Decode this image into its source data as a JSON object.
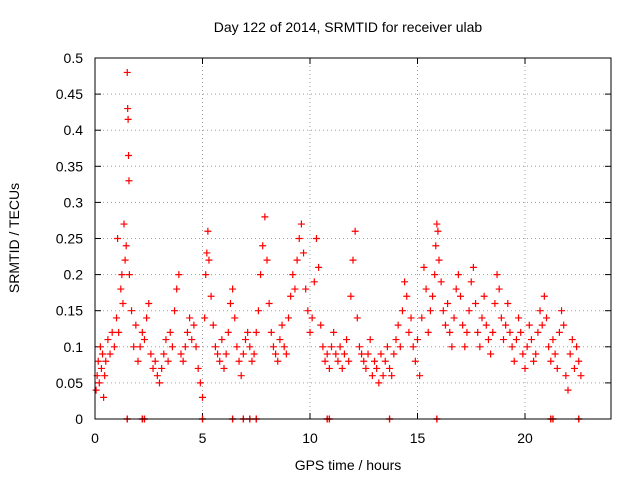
{
  "chart_data": {
    "type": "scatter",
    "title": "Day 122 of 2014, SRMTID for receiver ulab",
    "xlabel": "GPS time / hours",
    "ylabel": "SRMTID / TECUs",
    "xlim": [
      0,
      24
    ],
    "ylim": [
      0,
      0.5
    ],
    "xticks": [
      0,
      5,
      10,
      15,
      20
    ],
    "xtick_labels": [
      "0",
      "5",
      "10",
      "15",
      "20"
    ],
    "yticks": [
      0,
      0.05,
      0.1,
      0.15,
      0.2,
      0.25,
      0.3,
      0.35,
      0.4,
      0.45,
      0.5
    ],
    "ytick_labels": [
      "0",
      "0.05",
      "0.1",
      "0.15",
      "0.2",
      "0.25",
      "0.3",
      "0.35",
      "0.4",
      "0.45",
      "0.5"
    ],
    "grid": true,
    "marker": "+",
    "series_color": "#ff0000",
    "series": [
      {
        "name": "SRMTID",
        "points": [
          [
            0.05,
            0.04
          ],
          [
            0.1,
            0.06
          ],
          [
            0.15,
            0.08
          ],
          [
            0.2,
            0.05
          ],
          [
            0.25,
            0.1
          ],
          [
            0.3,
            0.07
          ],
          [
            0.35,
            0.09
          ],
          [
            0.4,
            0.03
          ],
          [
            0.45,
            0.06
          ],
          [
            0.5,
            0.08
          ],
          [
            0.6,
            0.11
          ],
          [
            0.7,
            0.09
          ],
          [
            0.8,
            0.12
          ],
          [
            0.9,
            0.1
          ],
          [
            1.0,
            0.14
          ],
          [
            1.05,
            0.25
          ],
          [
            1.1,
            0.12
          ],
          [
            1.2,
            0.18
          ],
          [
            1.25,
            0.2
          ],
          [
            1.3,
            0.16
          ],
          [
            1.35,
            0.27
          ],
          [
            1.4,
            0.22
          ],
          [
            1.45,
            0.24
          ],
          [
            1.5,
            0.48
          ],
          [
            1.52,
            0.43
          ],
          [
            1.54,
            0.415
          ],
          [
            1.56,
            0.365
          ],
          [
            1.58,
            0.33
          ],
          [
            1.6,
            0.2
          ],
          [
            1.7,
            0.15
          ],
          [
            1.8,
            0.1
          ],
          [
            1.9,
            0.13
          ],
          [
            2.0,
            0.08
          ],
          [
            2.1,
            0.1
          ],
          [
            2.2,
            0.12
          ],
          [
            2.3,
            0.11
          ],
          [
            2.4,
            0.14
          ],
          [
            2.5,
            0.16
          ],
          [
            2.6,
            0.09
          ],
          [
            2.7,
            0.07
          ],
          [
            2.8,
            0.08
          ],
          [
            2.9,
            0.06
          ],
          [
            3.0,
            0.05
          ],
          [
            3.1,
            0.07
          ],
          [
            3.2,
            0.09
          ],
          [
            3.3,
            0.11
          ],
          [
            3.4,
            0.08
          ],
          [
            3.5,
            0.12
          ],
          [
            3.6,
            0.1
          ],
          [
            3.7,
            0.15
          ],
          [
            3.8,
            0.18
          ],
          [
            3.9,
            0.2
          ],
          [
            4.0,
            0.09
          ],
          [
            4.1,
            0.08
          ],
          [
            4.2,
            0.1
          ],
          [
            4.3,
            0.12
          ],
          [
            4.4,
            0.14
          ],
          [
            4.5,
            0.11
          ],
          [
            4.6,
            0.13
          ],
          [
            4.7,
            0.1
          ],
          [
            4.8,
            0.07
          ],
          [
            4.9,
            0.05
          ],
          [
            5.0,
            0.03
          ],
          [
            5.1,
            0.14
          ],
          [
            5.15,
            0.2
          ],
          [
            5.2,
            0.23
          ],
          [
            5.25,
            0.26
          ],
          [
            5.3,
            0.22
          ],
          [
            5.4,
            0.17
          ],
          [
            5.5,
            0.13
          ],
          [
            5.6,
            0.1
          ],
          [
            5.7,
            0.09
          ],
          [
            5.8,
            0.08
          ],
          [
            5.9,
            0.11
          ],
          [
            6.0,
            0.07
          ],
          [
            6.1,
            0.09
          ],
          [
            6.2,
            0.12
          ],
          [
            6.3,
            0.16
          ],
          [
            6.4,
            0.18
          ],
          [
            6.5,
            0.14
          ],
          [
            6.6,
            0.1
          ],
          [
            6.7,
            0.08
          ],
          [
            6.8,
            0.06
          ],
          [
            6.9,
            0.09
          ],
          [
            7.0,
            0.11
          ],
          [
            7.1,
            0.12
          ],
          [
            7.2,
            0.1
          ],
          [
            7.3,
            0.08
          ],
          [
            7.4,
            0.09
          ],
          [
            7.5,
            0.12
          ],
          [
            7.6,
            0.15
          ],
          [
            7.7,
            0.2
          ],
          [
            7.8,
            0.24
          ],
          [
            7.9,
            0.28
          ],
          [
            8.0,
            0.22
          ],
          [
            8.1,
            0.16
          ],
          [
            8.2,
            0.12
          ],
          [
            8.3,
            0.1
          ],
          [
            8.4,
            0.09
          ],
          [
            8.5,
            0.08
          ],
          [
            8.6,
            0.11
          ],
          [
            8.7,
            0.13
          ],
          [
            8.8,
            0.1
          ],
          [
            8.9,
            0.09
          ],
          [
            9.0,
            0.14
          ],
          [
            9.1,
            0.17
          ],
          [
            9.2,
            0.2
          ],
          [
            9.3,
            0.18
          ],
          [
            9.4,
            0.22
          ],
          [
            9.5,
            0.25
          ],
          [
            9.6,
            0.27
          ],
          [
            9.7,
            0.23
          ],
          [
            9.8,
            0.18
          ],
          [
            9.9,
            0.15
          ],
          [
            10.0,
            0.12
          ],
          [
            10.1,
            0.14
          ],
          [
            10.2,
            0.19
          ],
          [
            10.3,
            0.25
          ],
          [
            10.4,
            0.21
          ],
          [
            10.5,
            0.13
          ],
          [
            10.6,
            0.1
          ],
          [
            10.7,
            0.08
          ],
          [
            10.8,
            0.09
          ],
          [
            10.9,
            0.07
          ],
          [
            11.0,
            0.1
          ],
          [
            11.1,
            0.12
          ],
          [
            11.2,
            0.09
          ],
          [
            11.3,
            0.08
          ],
          [
            11.4,
            0.1
          ],
          [
            11.5,
            0.07
          ],
          [
            11.6,
            0.09
          ],
          [
            11.7,
            0.11
          ],
          [
            11.8,
            0.08
          ],
          [
            11.9,
            0.17
          ],
          [
            12.0,
            0.22
          ],
          [
            12.1,
            0.26
          ],
          [
            12.2,
            0.14
          ],
          [
            12.3,
            0.1
          ],
          [
            12.4,
            0.09
          ],
          [
            12.5,
            0.08
          ],
          [
            12.6,
            0.07
          ],
          [
            12.7,
            0.09
          ],
          [
            12.8,
            0.11
          ],
          [
            12.9,
            0.06
          ],
          [
            13.0,
            0.08
          ],
          [
            13.1,
            0.07
          ],
          [
            13.2,
            0.05
          ],
          [
            13.3,
            0.09
          ],
          [
            13.4,
            0.06
          ],
          [
            13.5,
            0.08
          ],
          [
            13.6,
            0.1
          ],
          [
            13.7,
            0.07
          ],
          [
            13.8,
            0.06
          ],
          [
            13.9,
            0.09
          ],
          [
            14.0,
            0.11
          ],
          [
            14.1,
            0.13
          ],
          [
            14.2,
            0.1
          ],
          [
            14.3,
            0.15
          ],
          [
            14.4,
            0.19
          ],
          [
            14.5,
            0.17
          ],
          [
            14.6,
            0.12
          ],
          [
            14.7,
            0.14
          ],
          [
            14.8,
            0.1
          ],
          [
            14.9,
            0.08
          ],
          [
            15.0,
            0.11
          ],
          [
            15.1,
            0.06
          ],
          [
            15.2,
            0.14
          ],
          [
            15.3,
            0.21
          ],
          [
            15.4,
            0.18
          ],
          [
            15.5,
            0.12
          ],
          [
            15.6,
            0.15
          ],
          [
            15.7,
            0.17
          ],
          [
            15.8,
            0.2
          ],
          [
            15.85,
            0.24
          ],
          [
            15.9,
            0.27
          ],
          [
            15.95,
            0.26
          ],
          [
            16.0,
            0.22
          ],
          [
            16.1,
            0.19
          ],
          [
            16.2,
            0.15
          ],
          [
            16.3,
            0.13
          ],
          [
            16.4,
            0.16
          ],
          [
            16.5,
            0.12
          ],
          [
            16.6,
            0.1
          ],
          [
            16.7,
            0.14
          ],
          [
            16.8,
            0.18
          ],
          [
            16.9,
            0.2
          ],
          [
            17.0,
            0.17
          ],
          [
            17.1,
            0.13
          ],
          [
            17.2,
            0.1
          ],
          [
            17.3,
            0.12
          ],
          [
            17.4,
            0.15
          ],
          [
            17.5,
            0.19
          ],
          [
            17.6,
            0.21
          ],
          [
            17.7,
            0.16
          ],
          [
            17.8,
            0.12
          ],
          [
            17.9,
            0.1
          ],
          [
            18.0,
            0.14
          ],
          [
            18.1,
            0.17
          ],
          [
            18.2,
            0.13
          ],
          [
            18.3,
            0.11
          ],
          [
            18.4,
            0.09
          ],
          [
            18.5,
            0.12
          ],
          [
            18.6,
            0.16
          ],
          [
            18.7,
            0.2
          ],
          [
            18.8,
            0.18
          ],
          [
            18.9,
            0.14
          ],
          [
            19.0,
            0.11
          ],
          [
            19.1,
            0.13
          ],
          [
            19.2,
            0.16
          ],
          [
            19.3,
            0.12
          ],
          [
            19.4,
            0.1
          ],
          [
            19.5,
            0.08
          ],
          [
            19.6,
            0.11
          ],
          [
            19.7,
            0.14
          ],
          [
            19.8,
            0.12
          ],
          [
            19.9,
            0.09
          ],
          [
            20.0,
            0.07
          ],
          [
            20.1,
            0.1
          ],
          [
            20.2,
            0.13
          ],
          [
            20.3,
            0.11
          ],
          [
            20.4,
            0.08
          ],
          [
            20.5,
            0.09
          ],
          [
            20.6,
            0.12
          ],
          [
            20.7,
            0.15
          ],
          [
            20.8,
            0.13
          ],
          [
            20.9,
            0.17
          ],
          [
            21.0,
            0.14
          ],
          [
            21.1,
            0.1
          ],
          [
            21.2,
            0.08
          ],
          [
            21.3,
            0.11
          ],
          [
            21.4,
            0.09
          ],
          [
            21.5,
            0.07
          ],
          [
            21.6,
            0.12
          ],
          [
            21.7,
            0.15
          ],
          [
            21.8,
            0.13
          ],
          [
            21.9,
            0.06
          ],
          [
            22.0,
            0.04
          ],
          [
            22.1,
            0.09
          ],
          [
            22.2,
            0.11
          ],
          [
            22.3,
            0.07
          ],
          [
            22.4,
            0.1
          ],
          [
            22.5,
            0.08
          ],
          [
            22.6,
            0.06
          ]
        ]
      }
    ],
    "zero_markers_x": [
      1.5,
      2.2,
      2.3,
      5.0,
      6.4,
      6.9,
      7.2,
      7.5,
      10.8,
      10.9,
      13.7,
      15.9,
      21.2,
      21.3,
      22.5
    ]
  }
}
